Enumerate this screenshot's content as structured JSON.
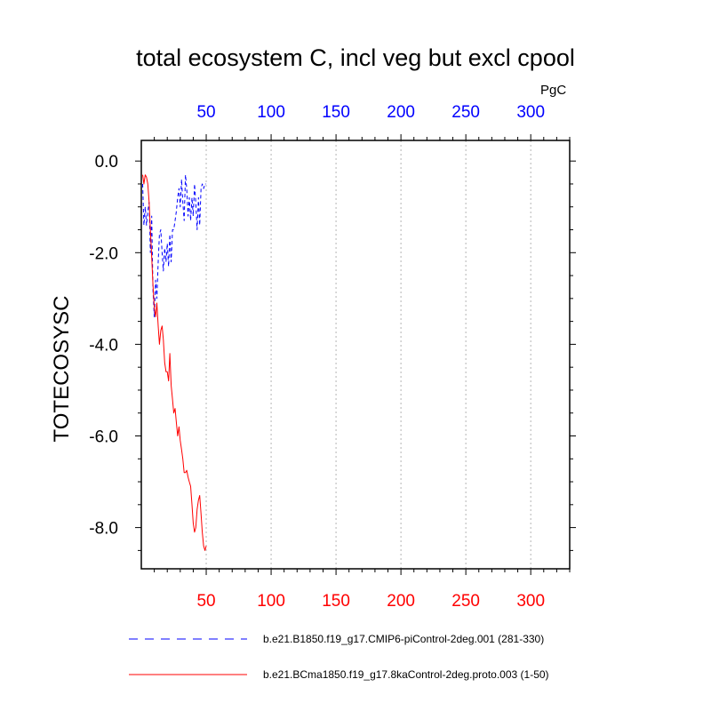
{
  "chart_data": {
    "type": "line",
    "title": "total ecosystem C, incl veg but excl cpool",
    "ylabel": "TOTECOSYSC",
    "units": "PgC",
    "xlim": [
      0,
      330
    ],
    "ylim": [
      -8.9,
      0.45
    ],
    "x_ticks_major": [
      50,
      100,
      150,
      200,
      250,
      300
    ],
    "x_tick_labels": [
      "50",
      "100",
      "150",
      "200",
      "250",
      "300"
    ],
    "y_ticks_major": [
      0,
      -2,
      -4,
      -6,
      -8
    ],
    "y_tick_labels": [
      "0.0",
      "-2.0",
      "-4.0",
      "-6.0",
      "-8.0"
    ],
    "top_axis_color": "#0000ff",
    "bottom_axis_color": "#ff0000",
    "grid": "vertical dotted at major x ticks",
    "series": [
      {
        "name": "b.e21.B1850.f19_g17.CMIP6-piControl-2deg.001 (281-330)",
        "color": "#0000ff",
        "style": "dashed",
        "x": [
          1,
          2,
          3,
          4,
          5,
          6,
          7,
          8,
          9,
          10,
          11,
          12,
          13,
          14,
          15,
          16,
          17,
          18,
          19,
          20,
          21,
          22,
          23,
          24,
          25,
          26,
          27,
          28,
          29,
          30,
          31,
          32,
          33,
          34,
          35,
          36,
          37,
          38,
          39,
          40,
          41,
          42,
          43,
          44,
          45,
          46,
          47,
          48,
          49,
          50
        ],
        "y": [
          -0.5,
          -1.4,
          -1.0,
          -1.4,
          -1.1,
          -0.9,
          -2.0,
          -1.2,
          -2.8,
          -3.4,
          -2.6,
          -3.0,
          -2.2,
          -1.6,
          -1.5,
          -2.0,
          -2.4,
          -1.9,
          -2.2,
          -1.8,
          -2.3,
          -1.6,
          -2.2,
          -1.5,
          -1.5,
          -1.3,
          -1.1,
          -0.8,
          -0.6,
          -1.0,
          -0.4,
          -0.9,
          -1.3,
          -0.3,
          -0.6,
          -1.2,
          -0.8,
          -1.3,
          -0.8,
          -1.2,
          -0.5,
          -0.9,
          -1.5,
          -0.8,
          -1.4,
          -0.6,
          -0.5,
          -0.6,
          -0.5,
          -0.5
        ]
      },
      {
        "name": "b.e21.BCma1850.f19_g17.8kaControl-2deg.proto.003 (1-50)",
        "color": "#ff0000",
        "style": "solid",
        "x": [
          1,
          2,
          3,
          4,
          5,
          6,
          7,
          8,
          9,
          10,
          11,
          12,
          13,
          14,
          15,
          16,
          17,
          18,
          19,
          20,
          21,
          22,
          23,
          24,
          25,
          26,
          27,
          28,
          29,
          30,
          31,
          32,
          33,
          34,
          35,
          36,
          37,
          38,
          39,
          40,
          41,
          42,
          43,
          44,
          45,
          46,
          47,
          48,
          49,
          50
        ],
        "y": [
          -0.3,
          -0.5,
          -0.3,
          -0.35,
          -0.5,
          -0.9,
          -1.5,
          -2.1,
          -2.7,
          -3.2,
          -3.4,
          -3.1,
          -3.6,
          -4.0,
          -3.7,
          -3.6,
          -3.9,
          -4.4,
          -4.6,
          -4.6,
          -4.8,
          -4.2,
          -4.9,
          -5.2,
          -5.5,
          -5.4,
          -5.7,
          -6.0,
          -5.8,
          -6.1,
          -6.3,
          -6.5,
          -6.8,
          -6.8,
          -6.75,
          -6.9,
          -7.0,
          -7.1,
          -7.5,
          -7.9,
          -8.1,
          -8.0,
          -7.6,
          -7.4,
          -7.3,
          -7.7,
          -8.1,
          -8.4,
          -8.5,
          -8.4
        ]
      }
    ]
  }
}
